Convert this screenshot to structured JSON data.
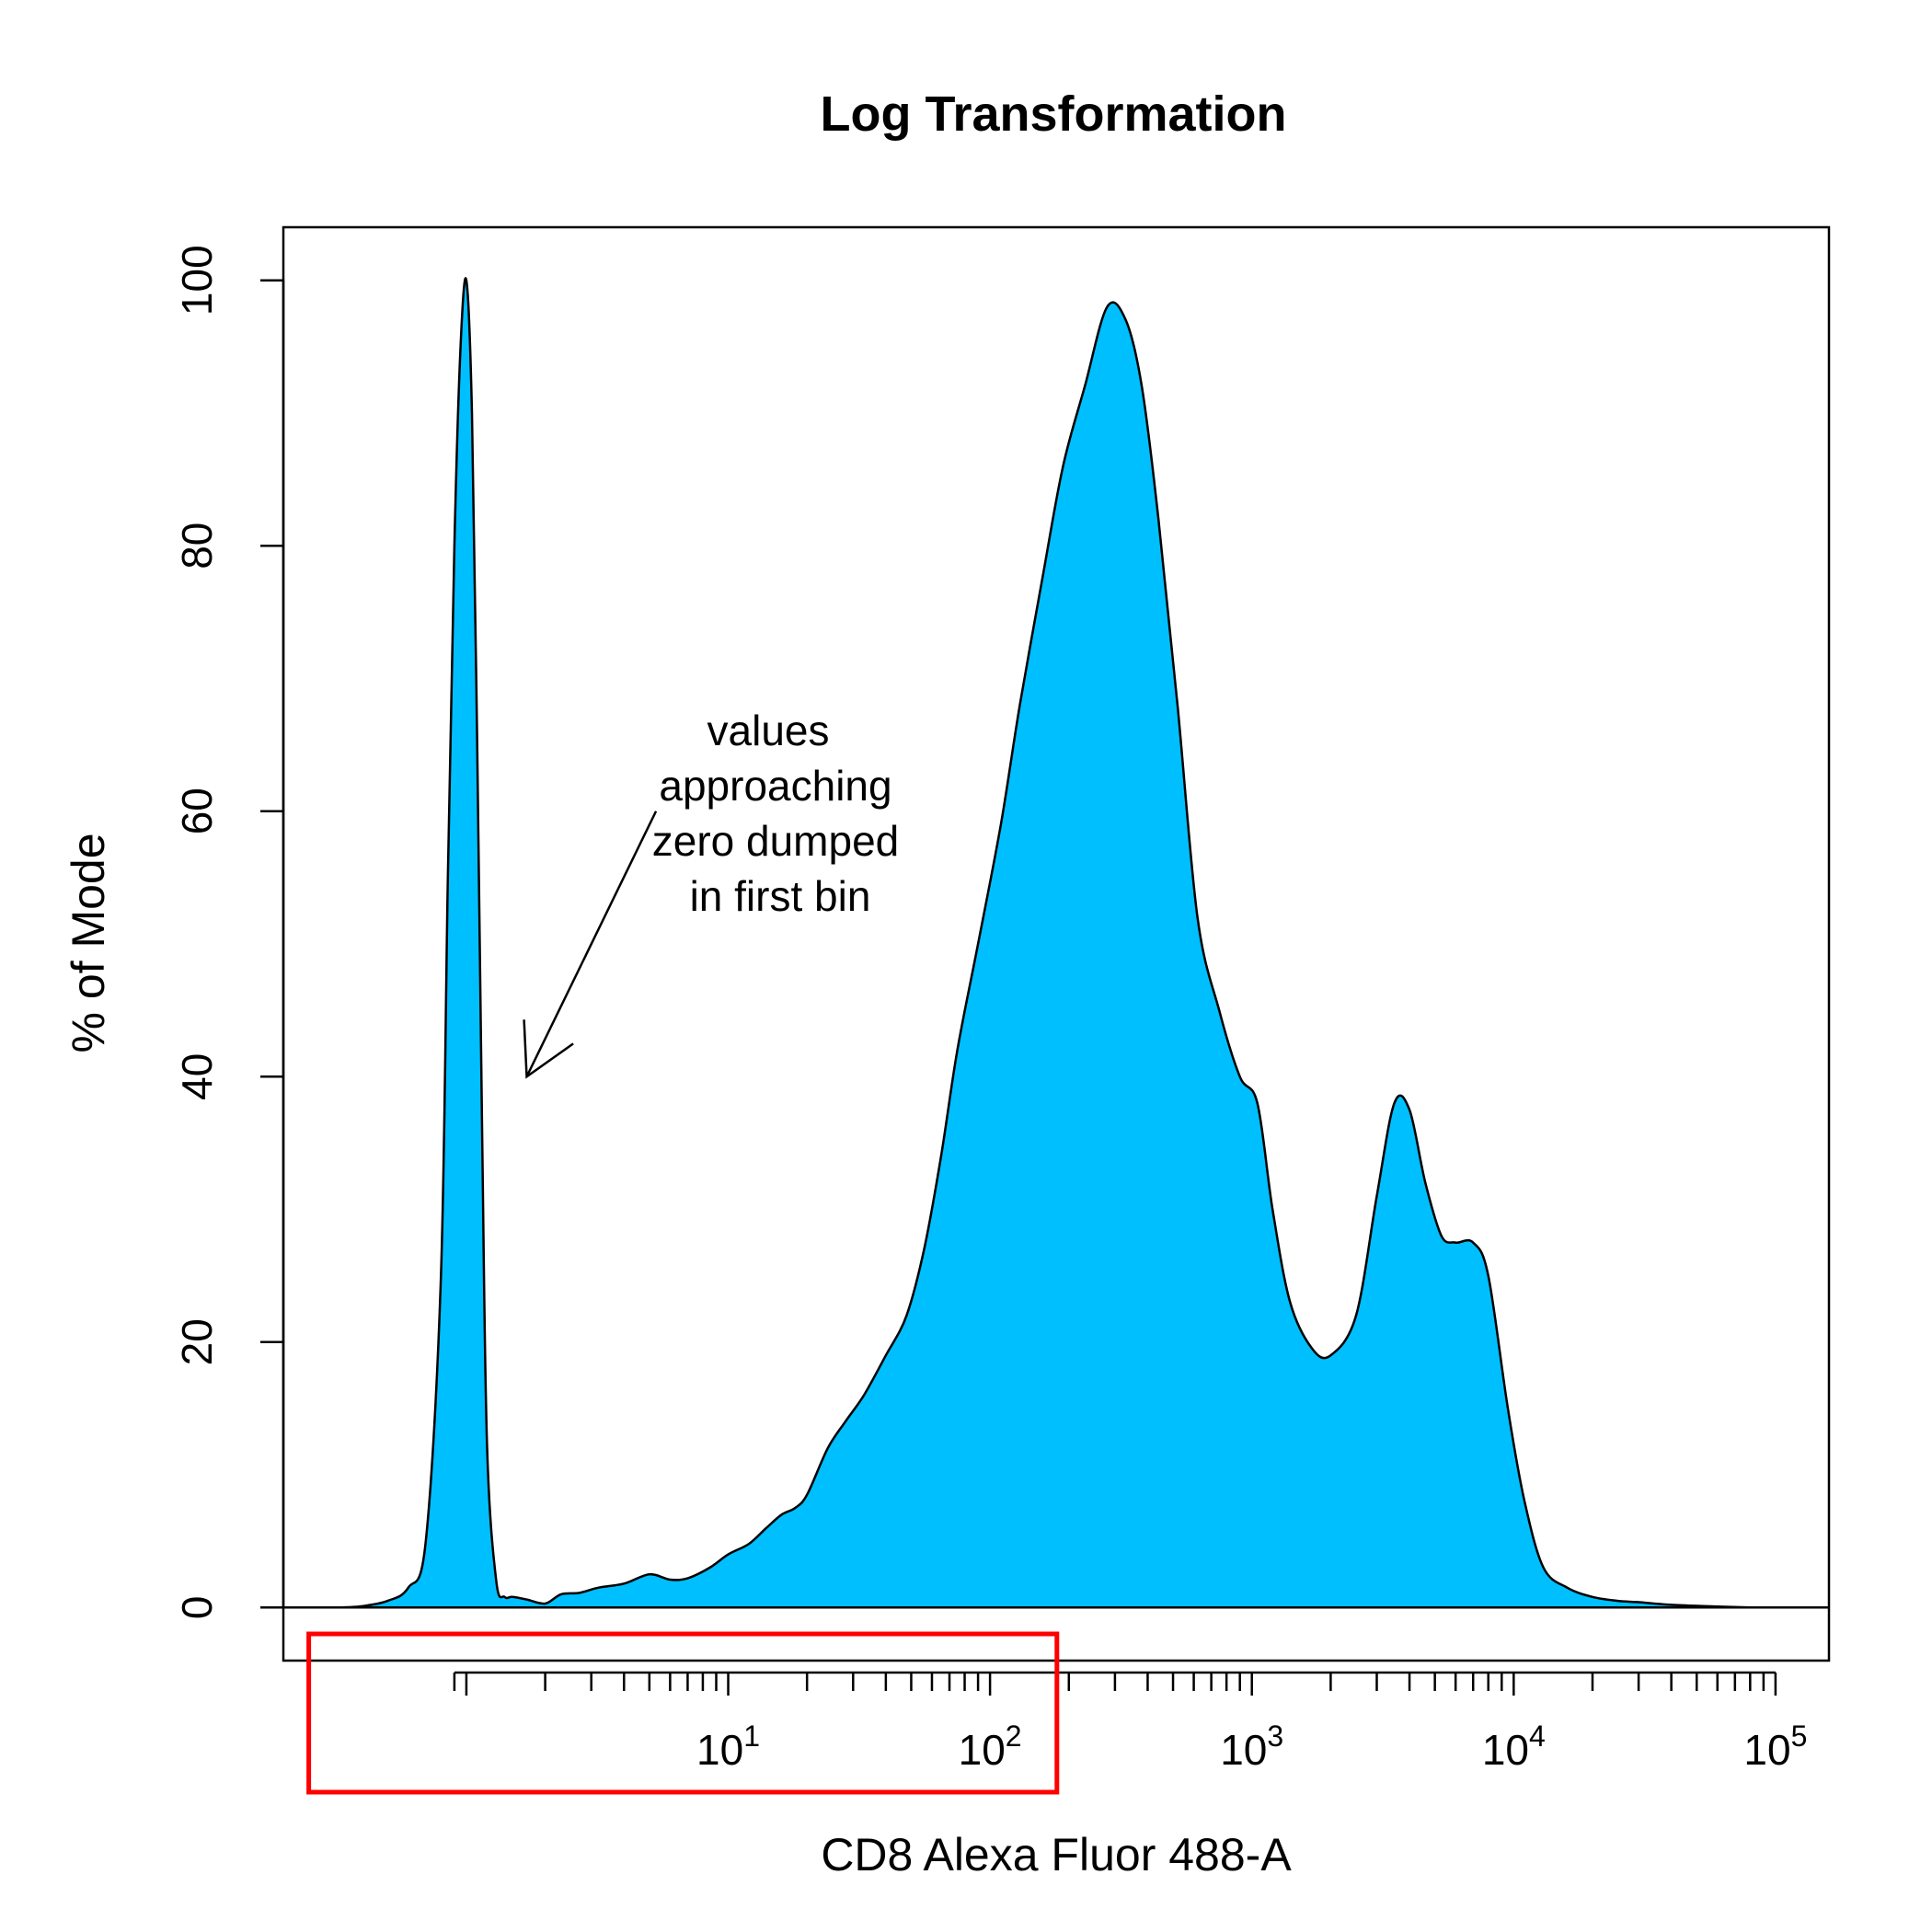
{
  "chart_data": {
    "type": "area",
    "title": "Log Transformation",
    "xlabel": "CD8 Alexa Fluor 488-A",
    "ylabel": "% of Mode",
    "x_scale": "log10",
    "xlim": [
      0.2,
      160000
    ],
    "ylim": [
      -4,
      104
    ],
    "yticks": [
      0,
      20,
      40,
      60,
      80,
      100
    ],
    "xticks": [
      {
        "value": 10,
        "base": "10",
        "exp": "1"
      },
      {
        "value": 100,
        "base": "10",
        "exp": "2"
      },
      {
        "value": 1000,
        "base": "10",
        "exp": "3"
      },
      {
        "value": 10000,
        "base": "10",
        "exp": "4"
      },
      {
        "value": 100000,
        "base": "10",
        "exp": "5"
      }
    ],
    "fill_color": "#00BFFF",
    "outline_color": "#000000",
    "highlight_box_color": "#FF0000",
    "highlight_box_xrange": [
      0.25,
      180
    ],
    "grid": false,
    "annotation": {
      "lines": [
        "values",
        "approaching",
        "zero dumped",
        "in first bin"
      ],
      "arrow_from": [
        5.3,
        60
      ],
      "arrow_to": [
        1.7,
        40
      ]
    },
    "x": [
      0.33,
      0.4,
      0.5,
      0.6,
      0.7,
      0.8,
      0.85,
      0.9,
      0.95,
      1.0,
      1.05,
      1.1,
      1.15,
      1.2,
      1.3,
      1.4,
      1.5,
      1.7,
      2.0,
      2.3,
      2.7,
      3.2,
      4.0,
      5.0,
      6.0,
      7.0,
      8.5,
      10,
      12,
      14,
      16,
      18,
      20,
      24,
      28,
      33,
      40,
      48,
      56,
      65,
      75,
      90,
      110,
      130,
      160,
      190,
      230,
      280,
      330,
      380,
      440,
      520,
      620,
      750,
      900,
      1050,
      1200,
      1400,
      1700,
      2000,
      2500,
      3000,
      3500,
      4000,
      4600,
      5300,
      6000,
      7000,
      8000,
      9500,
      11000,
      13000,
      16000,
      20000,
      25000,
      30000,
      40000,
      55000,
      80000
    ],
    "values": [
      0,
      0.1,
      0.5,
      1.5,
      5,
      25,
      55,
      80,
      95,
      100,
      90,
      65,
      35,
      12,
      2,
      0.8,
      0.8,
      0.6,
      0.3,
      1.0,
      1.1,
      1.5,
      1.8,
      2.5,
      2.1,
      2.2,
      3.0,
      4.0,
      4.8,
      6.0,
      7.0,
      7.5,
      8.5,
      12,
      14,
      16,
      19,
      22,
      27,
      34,
      42,
      50,
      59,
      68,
      78,
      86,
      92,
      98,
      97,
      92,
      82,
      68,
      52,
      45,
      40,
      38,
      30,
      23,
      19.5,
      19,
      22,
      31,
      38,
      37.5,
      32,
      28,
      27.5,
      27.5,
      25,
      15,
      8,
      3,
      1.5,
      0.8,
      0.5,
      0.4,
      0.2,
      0.1,
      0
    ]
  }
}
